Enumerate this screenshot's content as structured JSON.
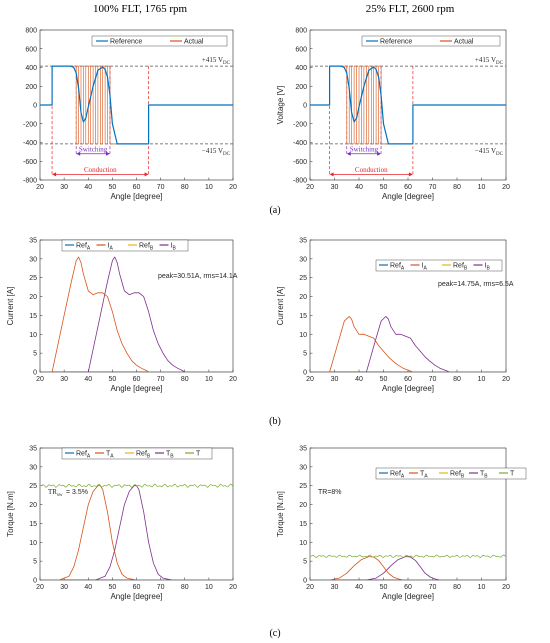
{
  "titles": [
    "100% FLT, 1765 rpm",
    "25% FLT, 2600 rpm"
  ],
  "captions": [
    "(a)",
    "(b)",
    "(c)"
  ],
  "colors": {
    "reference": "#0072BD",
    "actual": "#D95319",
    "series": [
      "#0072BD",
      "#D95319",
      "#EDB120",
      "#7E2F8E",
      "#77AC30"
    ],
    "conduction": "#E8232A",
    "switching": "#7B2FBE",
    "dashed": "#555555"
  },
  "chart_data": [
    {
      "type": "line",
      "panel": "voltage-100",
      "xlabel": "Angle [degree]",
      "ylabel": "",
      "xticklabels": [
        "20",
        "30",
        "40",
        "50",
        "60",
        "70",
        "80",
        "10",
        "20"
      ],
      "ylim": [
        -800,
        800
      ],
      "yticks": [
        -800,
        -600,
        -400,
        -200,
        0,
        200,
        400,
        600,
        800
      ],
      "legend": [
        "Reference",
        "Actual"
      ],
      "annotations": {
        "plus": "+415 V",
        "minus": "−415 V",
        "sub": "DC",
        "switching": "Switching",
        "conduction": "Conduction"
      },
      "levels": [
        415,
        -415
      ],
      "conduction": [
        25,
        65
      ],
      "switching": [
        35,
        49
      ],
      "series": [
        {
          "name": "Reference",
          "x": [
            20,
            25,
            25,
            30,
            32,
            33,
            34,
            35,
            36,
            37,
            38,
            39,
            40,
            42,
            44,
            46,
            47,
            48,
            49,
            50,
            52,
            54,
            56,
            58,
            60,
            62,
            64,
            65,
            65,
            70,
            80,
            90,
            100
          ],
          "y": [
            0,
            0,
            415,
            415,
            415,
            412,
            400,
            340,
            180,
            -80,
            -180,
            -140,
            -20,
            200,
            370,
            405,
            380,
            300,
            100,
            -200,
            -415,
            -415,
            -415,
            -415,
            -415,
            -415,
            -415,
            -415,
            0,
            0,
            0,
            0,
            0
          ]
        },
        {
          "name": "Actual",
          "x": [
            20,
            25,
            25,
            35,
            35,
            36,
            36,
            37,
            37,
            38,
            38,
            39,
            39,
            40,
            40,
            41,
            41,
            42,
            42,
            43,
            43,
            44,
            44,
            45,
            45,
            46,
            46,
            47,
            47,
            48,
            48,
            49,
            49,
            50,
            65,
            65,
            100
          ],
          "y": [
            0,
            0,
            415,
            415,
            -415,
            -415,
            415,
            415,
            -415,
            -415,
            415,
            415,
            -415,
            -415,
            415,
            415,
            -415,
            -415,
            415,
            415,
            -415,
            -415,
            415,
            415,
            -415,
            -415,
            415,
            415,
            -415,
            -415,
            415,
            415,
            -415,
            -415,
            -415,
            0,
            0
          ]
        }
      ]
    },
    {
      "type": "line",
      "panel": "voltage-25",
      "xlabel": "Angle [degree]",
      "ylabel": "Voltage [V]",
      "xticklabels": [
        "20",
        "30",
        "40",
        "50",
        "60",
        "70",
        "80",
        "10",
        "20"
      ],
      "ylim": [
        -800,
        800
      ],
      "yticks": [
        -800,
        -600,
        -400,
        -200,
        0,
        200,
        400,
        600,
        800
      ],
      "legend": [
        "Reference",
        "Actual"
      ],
      "annotations": {
        "plus": "+415 V",
        "minus": "−415 V",
        "sub": "DC",
        "switching": "Switching",
        "conduction": "Conduction"
      },
      "levels": [
        415,
        -415
      ],
      "conduction": [
        28,
        62
      ],
      "switching": [
        35,
        49
      ],
      "series": [
        {
          "name": "Reference",
          "x": [
            20,
            28,
            28,
            32,
            33,
            34,
            35,
            36,
            37,
            38,
            39,
            40,
            42,
            44,
            46,
            47,
            48,
            49,
            50,
            52,
            54,
            56,
            58,
            60,
            62,
            62,
            70,
            80,
            90,
            100
          ],
          "y": [
            0,
            0,
            415,
            415,
            412,
            400,
            340,
            180,
            -80,
            -180,
            -140,
            -20,
            200,
            370,
            405,
            380,
            300,
            100,
            -200,
            -415,
            -415,
            -415,
            -415,
            -415,
            -415,
            0,
            0,
            0,
            0,
            0
          ]
        },
        {
          "name": "Actual",
          "x": [
            20,
            28,
            28,
            35,
            35,
            36,
            36,
            37,
            37,
            38,
            38,
            39,
            39,
            40,
            40,
            41,
            41,
            42,
            42,
            43,
            43,
            44,
            44,
            45,
            45,
            46,
            46,
            47,
            47,
            48,
            48,
            49,
            49,
            50,
            62,
            62,
            100
          ],
          "y": [
            0,
            0,
            415,
            415,
            -415,
            -415,
            415,
            415,
            -415,
            -415,
            415,
            415,
            -415,
            -415,
            415,
            415,
            -415,
            -415,
            415,
            415,
            -415,
            -415,
            415,
            415,
            -415,
            -415,
            415,
            415,
            -415,
            -415,
            415,
            415,
            -415,
            -415,
            -415,
            0,
            0
          ]
        }
      ]
    },
    {
      "type": "line",
      "panel": "current-100",
      "xlabel": "Angle [degree]",
      "ylabel": "Current [A]",
      "xticklabels": [
        "20",
        "30",
        "40",
        "50",
        "60",
        "70",
        "80",
        "10",
        "20"
      ],
      "ylim": [
        0,
        35
      ],
      "yticks": [
        0,
        5,
        10,
        15,
        20,
        25,
        30,
        35
      ],
      "legend": [
        [
          "Ref",
          "A"
        ],
        [
          "I",
          "A"
        ],
        [
          "Ref",
          "B"
        ],
        [
          "I",
          "B"
        ]
      ],
      "annotation": "peak=30.51A, rms=14.1A",
      "series": [
        {
          "name": "I_A",
          "x": [
            20,
            25,
            30,
            33,
            35,
            36,
            37,
            38,
            40,
            42,
            44,
            46,
            48,
            50,
            52,
            54,
            56,
            58,
            60,
            62,
            64,
            65,
            80,
            100
          ],
          "y": [
            0,
            0,
            15,
            24,
            29.5,
            30.5,
            29,
            26,
            21.5,
            20.5,
            21,
            21,
            20,
            16,
            11,
            7.5,
            5,
            3,
            1.8,
            1,
            0.4,
            0,
            0,
            0
          ]
        },
        {
          "name": "I_B",
          "x": [
            20,
            40,
            45,
            48,
            50,
            51,
            52,
            53,
            55,
            57,
            59,
            61,
            63,
            65,
            67,
            69,
            71,
            73,
            75,
            77,
            79,
            80,
            100
          ],
          "y": [
            0,
            0,
            15,
            24,
            29.5,
            30.5,
            29,
            26,
            21.5,
            20.5,
            21,
            21,
            20,
            16,
            11,
            7.5,
            5,
            3,
            1.8,
            1,
            0.4,
            0,
            0
          ]
        }
      ]
    },
    {
      "type": "line",
      "panel": "current-25",
      "xlabel": "Angle [degree]",
      "ylabel": "Current [A]",
      "xticklabels": [
        "20",
        "30",
        "40",
        "50",
        "60",
        "70",
        "80",
        "10",
        "20"
      ],
      "ylim": [
        0,
        35
      ],
      "yticks": [
        0,
        5,
        10,
        15,
        20,
        25,
        30,
        35
      ],
      "legend": [
        [
          "Ref",
          "A"
        ],
        [
          "I",
          "A"
        ],
        [
          "Ref",
          "B"
        ],
        [
          "I",
          "B"
        ]
      ],
      "annotation": "peak=14.75A, rms=6.5A",
      "series": [
        {
          "name": "I_A",
          "x": [
            20,
            28,
            32,
            34,
            36,
            37,
            38,
            40,
            42,
            44,
            46,
            48,
            50,
            52,
            54,
            56,
            58,
            60,
            62,
            80,
            100
          ],
          "y": [
            0,
            0,
            9,
            13.5,
            14.75,
            14,
            12,
            10,
            10,
            9.5,
            9,
            7,
            5.5,
            4,
            2.8,
            1.8,
            1,
            0.5,
            0,
            0,
            0
          ]
        },
        {
          "name": "I_B",
          "x": [
            20,
            43,
            47,
            49,
            51,
            52,
            53,
            55,
            57,
            59,
            61,
            63,
            65,
            67,
            69,
            71,
            73,
            75,
            77,
            100
          ],
          "y": [
            0,
            0,
            9,
            13.5,
            14.75,
            14,
            12,
            10,
            10,
            9.5,
            9,
            7,
            5.5,
            4,
            2.8,
            1.8,
            1,
            0.5,
            0,
            0
          ]
        }
      ]
    },
    {
      "type": "line",
      "panel": "torque-100",
      "xlabel": "Angle [degree]",
      "ylabel": "Torque [N.m]",
      "xticklabels": [
        "20",
        "30",
        "40",
        "50",
        "60",
        "70",
        "80",
        "10",
        "20"
      ],
      "ylim": [
        0,
        35
      ],
      "yticks": [
        0,
        5,
        10,
        15,
        20,
        25,
        30,
        35
      ],
      "legend": [
        [
          "Ref",
          "A"
        ],
        [
          "T",
          "A"
        ],
        [
          "Ref",
          "B"
        ],
        [
          "T",
          "B"
        ],
        [
          "T",
          ""
        ]
      ],
      "annotation": {
        "text": "TR",
        "sub": "sw",
        "rest": " = 3.5%"
      },
      "series": [
        {
          "name": "T_A",
          "x": [
            20,
            28,
            32,
            34,
            36,
            38,
            40,
            42,
            44,
            45,
            46,
            48,
            50,
            52,
            54,
            56,
            58,
            60,
            100
          ],
          "y": [
            0,
            0,
            1,
            3.5,
            8,
            14,
            20,
            23.5,
            25,
            25,
            24,
            18,
            10,
            4.5,
            1.5,
            0.5,
            0.2,
            0,
            0
          ]
        },
        {
          "name": "T_B",
          "x": [
            20,
            43,
            47,
            49,
            51,
            53,
            55,
            57,
            59,
            60,
            61,
            63,
            65,
            67,
            69,
            71,
            73,
            75,
            100
          ],
          "y": [
            0,
            0,
            1,
            3.5,
            8,
            14,
            20,
            23.5,
            25,
            25,
            24,
            18,
            10,
            4.5,
            1.5,
            0.5,
            0.2,
            0,
            0
          ]
        },
        {
          "name": "T",
          "level": 25,
          "ripple": 0.45
        }
      ]
    },
    {
      "type": "line",
      "panel": "torque-25",
      "xlabel": "Angle [degree]",
      "ylabel": "Torque [N.m]",
      "xticklabels": [
        "20",
        "30",
        "40",
        "50",
        "60",
        "70",
        "80",
        "10",
        "20"
      ],
      "ylim": [
        0,
        35
      ],
      "yticks": [
        0,
        5,
        10,
        15,
        20,
        25,
        30,
        35
      ],
      "legend": [
        [
          "Ref",
          "A"
        ],
        [
          "T",
          "A"
        ],
        [
          "Ref",
          "B"
        ],
        [
          "T",
          "B"
        ],
        [
          "T",
          ""
        ]
      ],
      "annotation": {
        "text": "TR=8%",
        "sub": "",
        "rest": ""
      },
      "series": [
        {
          "name": "T_A",
          "x": [
            20,
            28,
            32,
            35,
            38,
            41,
            44,
            46,
            48,
            50,
            52,
            54,
            56,
            58,
            100
          ],
          "y": [
            0,
            0,
            0.5,
            1.8,
            3.8,
            5.4,
            6.2,
            6.1,
            5.2,
            3.5,
            1.8,
            0.8,
            0.3,
            0,
            0
          ]
        },
        {
          "name": "T_B",
          "x": [
            20,
            43,
            47,
            50,
            53,
            56,
            59,
            61,
            63,
            65,
            67,
            69,
            71,
            73,
            100
          ],
          "y": [
            0,
            0,
            0.5,
            1.8,
            3.8,
            5.4,
            6.2,
            6.1,
            5.2,
            3.5,
            1.8,
            0.8,
            0.3,
            0,
            0
          ]
        },
        {
          "name": "T",
          "level": 6.3,
          "ripple": 0.35
        }
      ]
    }
  ]
}
